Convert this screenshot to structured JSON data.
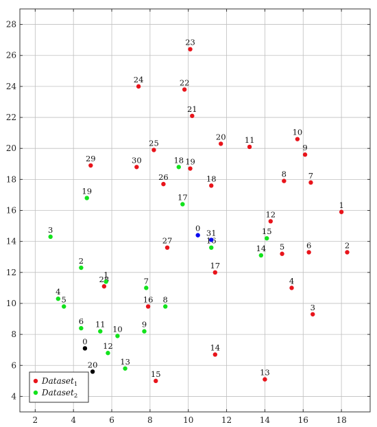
{
  "chart_data": {
    "type": "scatter",
    "title": "",
    "xlabel": "",
    "ylabel": "",
    "xlim": [
      1.2,
      19.5
    ],
    "ylim": [
      3.0,
      29.0
    ],
    "xticks": [
      2,
      4,
      6,
      8,
      10,
      12,
      14,
      16,
      18
    ],
    "yticks": [
      4,
      6,
      8,
      10,
      12,
      14,
      16,
      18,
      20,
      22,
      24,
      26,
      28
    ],
    "grid": true,
    "legend_position": "bottom-left",
    "series": [
      {
        "name": "Dataset",
        "name_subscript": "1",
        "color": "#e8141b",
        "points": [
          {
            "label": "1",
            "x": 18.0,
            "y": 15.9
          },
          {
            "label": "2",
            "x": 18.3,
            "y": 13.3
          },
          {
            "label": "3",
            "x": 16.5,
            "y": 9.3
          },
          {
            "label": "4",
            "x": 15.4,
            "y": 11.0
          },
          {
            "label": "5",
            "x": 14.9,
            "y": 13.2
          },
          {
            "label": "6",
            "x": 16.3,
            "y": 13.3
          },
          {
            "label": "7",
            "x": 16.4,
            "y": 17.8
          },
          {
            "label": "8",
            "x": 15.0,
            "y": 17.9
          },
          {
            "label": "9",
            "x": 16.1,
            "y": 19.6
          },
          {
            "label": "10",
            "x": 15.7,
            "y": 20.6
          },
          {
            "label": "11",
            "x": 13.2,
            "y": 20.1
          },
          {
            "label": "12",
            "x": 14.3,
            "y": 15.3
          },
          {
            "label": "13",
            "x": 14.0,
            "y": 5.1
          },
          {
            "label": "14",
            "x": 11.4,
            "y": 6.7
          },
          {
            "label": "15",
            "x": 8.3,
            "y": 5.0
          },
          {
            "label": "16",
            "x": 7.9,
            "y": 9.8
          },
          {
            "label": "17",
            "x": 11.4,
            "y": 12.0
          },
          {
            "label": "18",
            "x": 11.2,
            "y": 17.6
          },
          {
            "label": "19",
            "x": 10.1,
            "y": 18.7
          },
          {
            "label": "20",
            "x": 11.7,
            "y": 20.3
          },
          {
            "label": "21",
            "x": 10.2,
            "y": 22.1
          },
          {
            "label": "22",
            "x": 9.8,
            "y": 23.8
          },
          {
            "label": "23",
            "x": 10.1,
            "y": 26.4
          },
          {
            "label": "24",
            "x": 7.4,
            "y": 24.0
          },
          {
            "label": "25",
            "x": 8.2,
            "y": 19.9
          },
          {
            "label": "26",
            "x": 8.7,
            "y": 17.7
          },
          {
            "label": "27",
            "x": 8.9,
            "y": 13.6
          },
          {
            "label": "28",
            "x": 5.6,
            "y": 11.1
          },
          {
            "label": "29",
            "x": 4.9,
            "y": 18.9
          },
          {
            "label": "30",
            "x": 7.3,
            "y": 18.8
          }
        ]
      },
      {
        "name": "Dataset",
        "name_subscript": "2",
        "color": "#12e21c",
        "points": [
          {
            "label": "1",
            "x": 5.7,
            "y": 11.4
          },
          {
            "label": "2",
            "x": 4.4,
            "y": 12.3
          },
          {
            "label": "3",
            "x": 2.8,
            "y": 14.3
          },
          {
            "label": "4",
            "x": 3.2,
            "y": 10.3
          },
          {
            "label": "5",
            "x": 3.5,
            "y": 9.8
          },
          {
            "label": "6",
            "x": 4.4,
            "y": 8.4
          },
          {
            "label": "7",
            "x": 7.8,
            "y": 11.0
          },
          {
            "label": "8",
            "x": 8.8,
            "y": 9.8
          },
          {
            "label": "9",
            "x": 7.7,
            "y": 8.2
          },
          {
            "label": "10",
            "x": 6.3,
            "y": 7.9
          },
          {
            "label": "11",
            "x": 5.4,
            "y": 8.2
          },
          {
            "label": "12",
            "x": 5.8,
            "y": 6.8
          },
          {
            "label": "13",
            "x": 6.7,
            "y": 5.8
          },
          {
            "label": "14",
            "x": 13.8,
            "y": 13.1
          },
          {
            "label": "15",
            "x": 14.1,
            "y": 14.2
          },
          {
            "label": "16",
            "x": 11.2,
            "y": 13.6
          },
          {
            "label": "17",
            "x": 9.7,
            "y": 16.4
          },
          {
            "label": "18",
            "x": 9.5,
            "y": 18.8
          },
          {
            "label": "19",
            "x": 4.7,
            "y": 16.8
          }
        ]
      },
      {
        "name": "",
        "color": "#0a0af0",
        "points": [
          {
            "label": "0",
            "x": 10.5,
            "y": 14.4
          },
          {
            "label": "31",
            "x": 11.2,
            "y": 14.1
          }
        ]
      },
      {
        "name": "",
        "color": "#000000",
        "points": [
          {
            "label": "0",
            "x": 4.6,
            "y": 7.1
          },
          {
            "label": "20",
            "x": 5.0,
            "y": 5.6
          }
        ]
      }
    ],
    "legend": [
      {
        "name": "Dataset",
        "sub": "1",
        "color": "#e8141b"
      },
      {
        "name": "Dataset",
        "sub": "2",
        "color": "#12e21c"
      }
    ]
  }
}
